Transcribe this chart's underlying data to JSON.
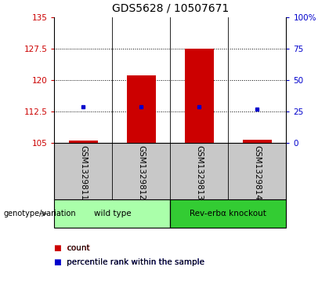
{
  "title": "GDS5628 / 10507671",
  "samples": [
    "GSM1329811",
    "GSM1329812",
    "GSM1329813",
    "GSM1329814"
  ],
  "count_values": [
    105.5,
    121.0,
    127.5,
    105.7
  ],
  "percentile_values": [
    113.5,
    113.5,
    113.5,
    113.0
  ],
  "ylim_left": [
    105,
    135
  ],
  "ylim_right": [
    0,
    100
  ],
  "yticks_left": [
    105,
    112.5,
    120,
    127.5,
    135
  ],
  "yticks_right": [
    0,
    25,
    50,
    75,
    100
  ],
  "ytick_labels_left": [
    "105",
    "112.5",
    "120",
    "127.5",
    "135"
  ],
  "ytick_labels_right": [
    "0",
    "25",
    "50",
    "75",
    "100%"
  ],
  "bar_color": "#cc0000",
  "dot_color": "#0000cc",
  "bar_width": 0.5,
  "groups": [
    {
      "label": "wild type",
      "indices": [
        0,
        1
      ],
      "color": "#aaffaa"
    },
    {
      "label": "Rev-erbα knockout",
      "indices": [
        2,
        3
      ],
      "color": "#33cc33"
    }
  ],
  "genotype_label": "genotype/variation",
  "legend_count_label": "count",
  "legend_percentile_label": "percentile rank within the sample",
  "background_color": "#ffffff",
  "plot_bg": "#ffffff",
  "sample_area_color": "#c8c8c8",
  "title_fontsize": 10,
  "tick_fontsize": 7.5,
  "axis_label_color_left": "#cc0000",
  "axis_label_color_right": "#0000cc"
}
